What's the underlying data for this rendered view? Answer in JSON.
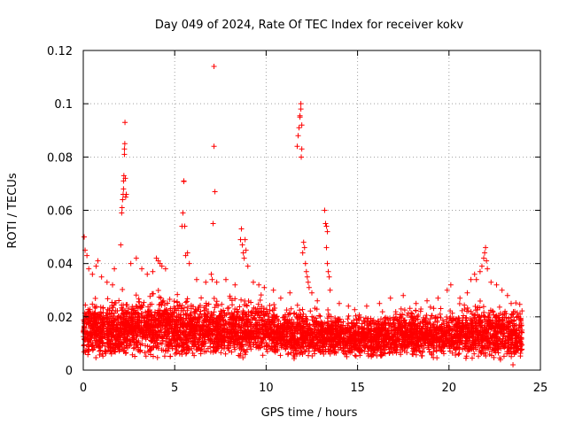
{
  "chart_data": {
    "type": "scatter",
    "title": "Day 049 of 2024, Rate Of TEC Index for receiver kokv",
    "xlabel": "GPS time / hours",
    "ylabel": "ROTI / TECUs",
    "xlim": [
      0,
      25
    ],
    "ylim": [
      0,
      0.12
    ],
    "x_ticks": [
      0,
      5,
      10,
      15,
      20,
      25
    ],
    "x_tick_labels": [
      "0",
      "5",
      "10",
      "15",
      "20",
      "25"
    ],
    "y_ticks": [
      0,
      0.02,
      0.04,
      0.06,
      0.08,
      0.1,
      0.12
    ],
    "y_tick_labels": [
      "0",
      "0.02",
      "0.04",
      "0.06",
      "0.08",
      "0.1",
      "0.12"
    ],
    "grid": true,
    "marker": "plus",
    "series": [
      {
        "name": "ROTI",
        "color": "#ff0000",
        "base_band": [
          {
            "x_range": [
              0.0,
              2.0
            ],
            "y_range": [
              0.004,
              0.03
            ],
            "count": 450
          },
          {
            "x_range": [
              2.0,
              5.0
            ],
            "y_range": [
              0.004,
              0.032
            ],
            "count": 650
          },
          {
            "x_range": [
              5.0,
              7.5
            ],
            "y_range": [
              0.004,
              0.03
            ],
            "count": 520
          },
          {
            "x_range": [
              7.5,
              10.5
            ],
            "y_range": [
              0.004,
              0.03
            ],
            "count": 600
          },
          {
            "x_range": [
              10.5,
              13.5
            ],
            "y_range": [
              0.004,
              0.026
            ],
            "count": 600
          },
          {
            "x_range": [
              13.5,
              17.0
            ],
            "y_range": [
              0.004,
              0.024
            ],
            "count": 700
          },
          {
            "x_range": [
              17.0,
              20.5
            ],
            "y_range": [
              0.004,
              0.026
            ],
            "count": 700
          },
          {
            "x_range": [
              20.5,
              24.0
            ],
            "y_range": [
              0.003,
              0.028
            ],
            "count": 700
          }
        ],
        "points": [
          [
            0.05,
            0.05
          ],
          [
            0.1,
            0.045
          ],
          [
            0.2,
            0.043
          ],
          [
            0.3,
            0.038
          ],
          [
            0.5,
            0.036
          ],
          [
            0.7,
            0.039
          ],
          [
            0.8,
            0.041
          ],
          [
            1.0,
            0.035
          ],
          [
            1.3,
            0.033
          ],
          [
            1.6,
            0.032
          ],
          [
            1.7,
            0.038
          ],
          [
            2.05,
            0.047
          ],
          [
            2.1,
            0.059
          ],
          [
            2.12,
            0.061
          ],
          [
            2.15,
            0.064
          ],
          [
            2.18,
            0.066
          ],
          [
            2.2,
            0.068
          ],
          [
            2.2,
            0.071
          ],
          [
            2.22,
            0.073
          ],
          [
            2.25,
            0.081
          ],
          [
            2.25,
            0.083
          ],
          [
            2.27,
            0.085
          ],
          [
            2.28,
            0.093
          ],
          [
            2.3,
            0.072
          ],
          [
            2.32,
            0.065
          ],
          [
            2.35,
            0.066
          ],
          [
            2.6,
            0.04
          ],
          [
            2.9,
            0.042
          ],
          [
            3.2,
            0.038
          ],
          [
            3.5,
            0.036
          ],
          [
            3.8,
            0.037
          ],
          [
            4.0,
            0.042
          ],
          [
            4.1,
            0.041
          ],
          [
            4.2,
            0.04
          ],
          [
            4.3,
            0.039
          ],
          [
            4.5,
            0.038
          ],
          [
            5.4,
            0.054
          ],
          [
            5.45,
            0.059
          ],
          [
            5.5,
            0.071
          ],
          [
            5.5,
            0.0708
          ],
          [
            5.55,
            0.054
          ],
          [
            5.6,
            0.043
          ],
          [
            5.7,
            0.044
          ],
          [
            5.8,
            0.04
          ],
          [
            6.2,
            0.034
          ],
          [
            6.7,
            0.033
          ],
          [
            7.0,
            0.036
          ],
          [
            7.05,
            0.034
          ],
          [
            7.1,
            0.055
          ],
          [
            7.15,
            0.084
          ],
          [
            7.2,
            0.067
          ],
          [
            7.15,
            0.114
          ],
          [
            7.3,
            0.033
          ],
          [
            7.8,
            0.034
          ],
          [
            8.3,
            0.032
          ],
          [
            8.6,
            0.049
          ],
          [
            8.65,
            0.053
          ],
          [
            8.7,
            0.047
          ],
          [
            8.75,
            0.044
          ],
          [
            8.8,
            0.042
          ],
          [
            8.85,
            0.049
          ],
          [
            8.9,
            0.045
          ],
          [
            9.0,
            0.039
          ],
          [
            9.3,
            0.033
          ],
          [
            9.6,
            0.032
          ],
          [
            9.9,
            0.031
          ],
          [
            10.4,
            0.03
          ],
          [
            10.8,
            0.027
          ],
          [
            11.3,
            0.029
          ],
          [
            11.7,
            0.084
          ],
          [
            11.75,
            0.088
          ],
          [
            11.8,
            0.091
          ],
          [
            11.85,
            0.095
          ],
          [
            11.85,
            0.0955
          ],
          [
            11.9,
            0.098
          ],
          [
            11.9,
            0.1
          ],
          [
            11.92,
            0.08
          ],
          [
            11.95,
            0.092
          ],
          [
            11.95,
            0.083
          ],
          [
            12.0,
            0.044
          ],
          [
            12.05,
            0.048
          ],
          [
            12.1,
            0.046
          ],
          [
            12.15,
            0.04
          ],
          [
            12.2,
            0.037
          ],
          [
            12.25,
            0.035
          ],
          [
            12.3,
            0.033
          ],
          [
            12.35,
            0.031
          ],
          [
            12.5,
            0.029
          ],
          [
            12.8,
            0.026
          ],
          [
            13.2,
            0.06
          ],
          [
            13.25,
            0.055
          ],
          [
            13.3,
            0.054
          ],
          [
            13.35,
            0.052
          ],
          [
            13.3,
            0.046
          ],
          [
            13.35,
            0.04
          ],
          [
            13.4,
            0.037
          ],
          [
            13.45,
            0.035
          ],
          [
            13.5,
            0.03
          ],
          [
            14.0,
            0.025
          ],
          [
            14.5,
            0.024
          ],
          [
            15.5,
            0.024
          ],
          [
            16.2,
            0.025
          ],
          [
            16.8,
            0.027
          ],
          [
            17.5,
            0.028
          ],
          [
            18.2,
            0.025
          ],
          [
            18.8,
            0.026
          ],
          [
            19.4,
            0.027
          ],
          [
            19.9,
            0.03
          ],
          [
            20.1,
            0.032
          ],
          [
            20.6,
            0.027
          ],
          [
            21.0,
            0.029
          ],
          [
            21.2,
            0.034
          ],
          [
            21.4,
            0.036
          ],
          [
            21.5,
            0.034
          ],
          [
            21.7,
            0.037
          ],
          [
            21.8,
            0.039
          ],
          [
            21.9,
            0.042
          ],
          [
            21.95,
            0.044
          ],
          [
            22.0,
            0.046
          ],
          [
            22.05,
            0.041
          ],
          [
            22.1,
            0.038
          ],
          [
            22.3,
            0.033
          ],
          [
            22.6,
            0.032
          ],
          [
            22.9,
            0.03
          ],
          [
            23.2,
            0.028
          ],
          [
            23.4,
            0.025
          ],
          [
            23.6,
            0.022
          ],
          [
            23.8,
            0.02
          ],
          [
            23.5,
            0.002
          ],
          [
            23.9,
            0.01
          ]
        ]
      }
    ]
  }
}
